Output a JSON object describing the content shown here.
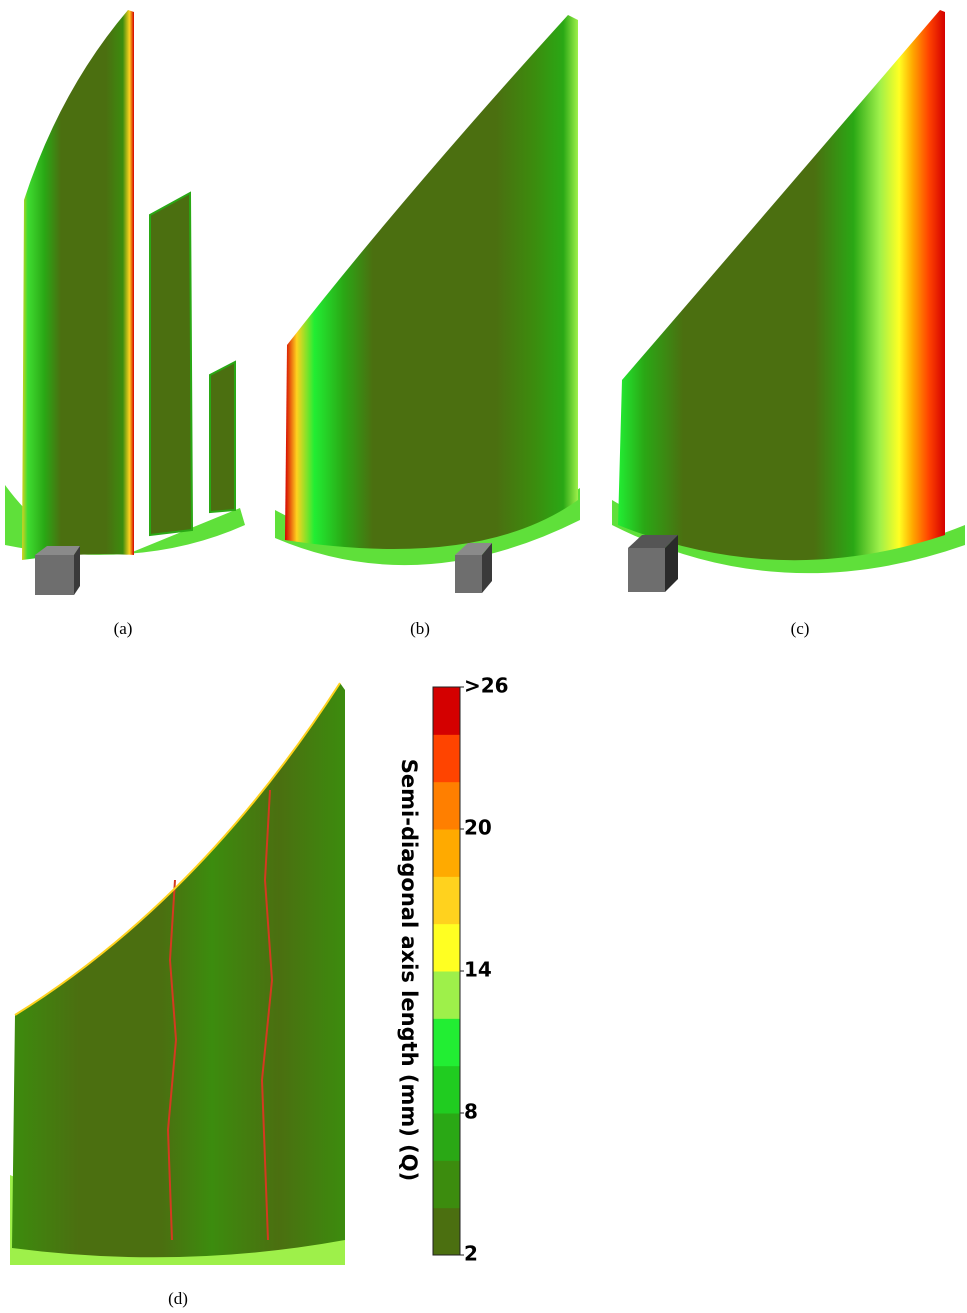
{
  "panels": [
    {
      "caption": "(a)"
    },
    {
      "caption": "(b)"
    },
    {
      "caption": "(c)"
    },
    {
      "caption": "(d)"
    }
  ],
  "colorbar": {
    "title": "Semi-diagonal axis length (mm) (Q)",
    "range": [
      2,
      26
    ],
    "ticks": [
      2,
      8,
      14,
      20,
      {
        "value": 26,
        "label": ">26"
      }
    ],
    "colors": [
      "#4b6f10",
      "#3c8c0e",
      "#2aa815",
      "#20cc20",
      "#22ee33",
      "#9ef04a",
      "#ffff22",
      "#ffd21e",
      "#ffaa00",
      "#ff7f00",
      "#ff4400",
      "#d40000"
    ]
  }
}
